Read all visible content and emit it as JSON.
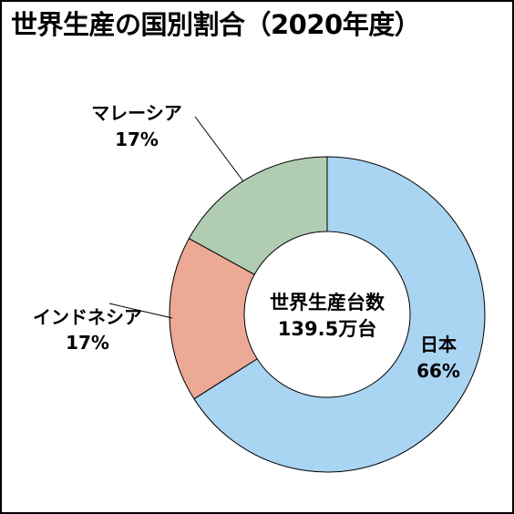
{
  "chart_data": {
    "type": "pie",
    "title": "世界生産の国別割合（2020年度）",
    "center_label": {
      "line1": "世界生産台数",
      "line2": "139.5万台"
    },
    "slices": [
      {
        "name": "日本",
        "value": 66,
        "value_label": "66%",
        "color": "#a9d4f2"
      },
      {
        "name": "インドネシア",
        "value": 17,
        "value_label": "17%",
        "color": "#eba996"
      },
      {
        "name": "マレーシア",
        "value": 17,
        "value_label": "17%",
        "color": "#b0cdb1"
      }
    ],
    "legend": "none",
    "grid": false
  }
}
